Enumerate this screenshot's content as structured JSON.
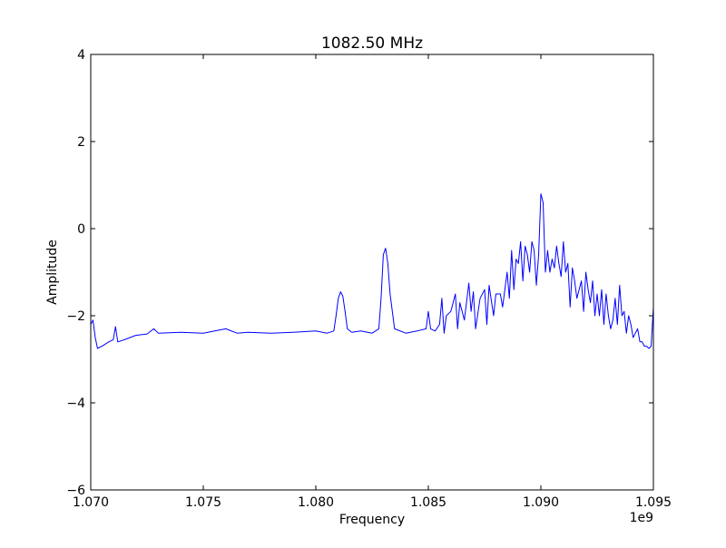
{
  "chart_data": {
    "type": "line",
    "title": "1082.50 MHz",
    "xlabel": "Frequency",
    "ylabel": "Amplitude",
    "x_offset_label": "1e9",
    "xlim": [
      1.07,
      1.095
    ],
    "ylim": [
      -6,
      4
    ],
    "x_ticks": [
      1.07,
      1.075,
      1.08,
      1.085,
      1.09,
      1.095
    ],
    "x_tick_labels": [
      "1.070",
      "1.075",
      "1.080",
      "1.085",
      "1.090",
      "1.095"
    ],
    "y_ticks": [
      -6,
      -4,
      -2,
      0,
      2,
      4
    ],
    "y_tick_labels": [
      "−6",
      "−4",
      "−2",
      "0",
      "2",
      "4"
    ],
    "grid": false,
    "legend": "none",
    "series_color": "#0000ff",
    "series": [
      {
        "x": [
          1.07,
          1.0701,
          1.0702,
          1.0703,
          1.0705,
          1.0708,
          1.071,
          1.0711,
          1.0712,
          1.0715,
          1.072,
          1.0725,
          1.0728,
          1.073,
          1.074,
          1.075,
          1.076,
          1.0765,
          1.077,
          1.078,
          1.079,
          1.08,
          1.0805,
          1.0808,
          1.0809,
          1.081,
          1.0811,
          1.0812,
          1.0813,
          1.0814,
          1.0816,
          1.082,
          1.0825,
          1.0828,
          1.0829,
          1.083,
          1.0831,
          1.0832,
          1.0833,
          1.0835,
          1.084,
          1.0845,
          1.0849,
          1.085,
          1.0851,
          1.0853,
          1.0855,
          1.0856,
          1.0857,
          1.0858,
          1.086,
          1.0862,
          1.0863,
          1.0864,
          1.0866,
          1.0868,
          1.0869,
          1.087,
          1.0871,
          1.0873,
          1.0875,
          1.0876,
          1.0877,
          1.0879,
          1.088,
          1.0882,
          1.0883,
          1.0885,
          1.0886,
          1.0887,
          1.0888,
          1.0889,
          1.089,
          1.0891,
          1.0892,
          1.0893,
          1.0894,
          1.0895,
          1.0896,
          1.0897,
          1.0898,
          1.0899,
          1.09,
          1.0901,
          1.0902,
          1.0903,
          1.0904,
          1.0905,
          1.0906,
          1.0907,
          1.0908,
          1.0909,
          1.091,
          1.0911,
          1.0912,
          1.0913,
          1.0914,
          1.0915,
          1.0916,
          1.0918,
          1.0919,
          1.092,
          1.0921,
          1.0922,
          1.0923,
          1.0924,
          1.0925,
          1.0926,
          1.0927,
          1.0928,
          1.0929,
          1.093,
          1.0931,
          1.0932,
          1.0933,
          1.0934,
          1.0935,
          1.0936,
          1.0937,
          1.0938,
          1.0939,
          1.094,
          1.0941,
          1.0942,
          1.0943,
          1.0944,
          1.0945,
          1.0946,
          1.0947,
          1.0948,
          1.0949,
          1.095
        ],
        "y": [
          -2.2,
          -2.1,
          -2.5,
          -2.75,
          -2.7,
          -2.6,
          -2.55,
          -2.25,
          -2.6,
          -2.55,
          -2.45,
          -2.42,
          -2.3,
          -2.4,
          -2.38,
          -2.4,
          -2.3,
          -2.4,
          -2.38,
          -2.4,
          -2.38,
          -2.35,
          -2.4,
          -2.35,
          -2.0,
          -1.6,
          -1.45,
          -1.55,
          -1.9,
          -2.3,
          -2.38,
          -2.35,
          -2.4,
          -2.3,
          -1.6,
          -0.6,
          -0.45,
          -0.8,
          -1.5,
          -2.3,
          -2.4,
          -2.35,
          -2.3,
          -1.9,
          -2.3,
          -2.35,
          -2.2,
          -1.6,
          -2.4,
          -2.0,
          -1.9,
          -1.5,
          -2.3,
          -1.7,
          -2.1,
          -1.25,
          -1.9,
          -1.45,
          -2.3,
          -1.6,
          -1.4,
          -2.2,
          -1.3,
          -2.0,
          -1.5,
          -1.5,
          -1.8,
          -1.0,
          -1.6,
          -0.5,
          -1.4,
          -0.7,
          -0.8,
          -0.3,
          -1.2,
          -0.4,
          -0.6,
          -1.0,
          -0.3,
          -0.5,
          -1.3,
          -0.6,
          0.8,
          0.6,
          -1.0,
          -0.5,
          -1.0,
          -0.7,
          -0.9,
          -0.4,
          -0.8,
          -1.1,
          -0.3,
          -1.0,
          -0.8,
          -1.8,
          -0.9,
          -1.2,
          -1.6,
          -1.2,
          -1.9,
          -1.0,
          -1.4,
          -1.7,
          -1.2,
          -2.0,
          -1.5,
          -2.0,
          -1.4,
          -2.2,
          -1.5,
          -2.0,
          -2.3,
          -2.1,
          -1.6,
          -2.2,
          -1.3,
          -2.0,
          -1.9,
          -2.4,
          -2.0,
          -2.2,
          -2.5,
          -2.4,
          -2.3,
          -2.6,
          -2.6,
          -2.7,
          -2.7,
          -2.75,
          -2.7,
          -1.8
        ]
      }
    ]
  }
}
